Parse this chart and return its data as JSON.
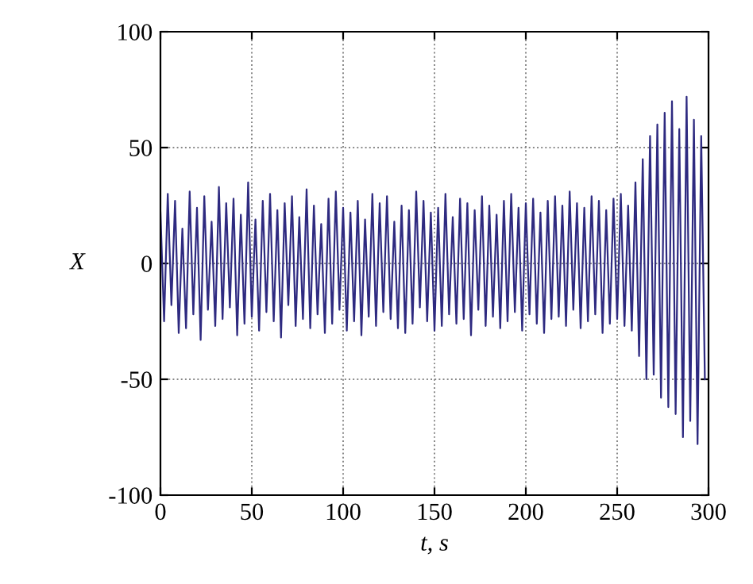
{
  "chart_data": {
    "type": "line",
    "xlabel": "t, s",
    "ylabel": "X",
    "x": [
      0,
      2,
      4,
      6,
      8,
      10,
      12,
      14,
      16,
      18,
      20,
      22,
      24,
      26,
      28,
      30,
      32,
      34,
      36,
      38,
      40,
      42,
      44,
      46,
      48,
      50,
      52,
      54,
      56,
      58,
      60,
      62,
      64,
      66,
      68,
      70,
      72,
      74,
      76,
      78,
      80,
      82,
      84,
      86,
      88,
      90,
      92,
      94,
      96,
      98,
      100,
      102,
      104,
      106,
      108,
      110,
      112,
      114,
      116,
      118,
      120,
      122,
      124,
      126,
      128,
      130,
      132,
      134,
      136,
      138,
      140,
      142,
      144,
      146,
      148,
      150,
      152,
      154,
      156,
      158,
      160,
      162,
      164,
      166,
      168,
      170,
      172,
      174,
      176,
      178,
      180,
      182,
      184,
      186,
      188,
      190,
      192,
      194,
      196,
      198,
      200,
      202,
      204,
      206,
      208,
      210,
      212,
      214,
      216,
      218,
      220,
      222,
      224,
      226,
      228,
      230,
      232,
      234,
      236,
      238,
      240,
      242,
      244,
      246,
      248,
      250,
      252,
      254,
      256,
      258,
      260,
      262,
      264,
      266,
      268,
      270,
      272,
      274,
      276,
      278,
      280,
      282,
      284,
      286,
      288,
      290,
      292,
      294,
      296,
      298
    ],
    "series": [
      {
        "color": "#2e2a80",
        "values": [
          22,
          -25,
          30,
          -18,
          27,
          -30,
          15,
          -28,
          31,
          -22,
          24,
          -33,
          29,
          -20,
          18,
          -27,
          33,
          -24,
          26,
          -19,
          28,
          -31,
          21,
          -26,
          35,
          -23,
          19,
          -29,
          27,
          -21,
          30,
          -25,
          23,
          -32,
          26,
          -18,
          29,
          -27,
          20,
          -24,
          32,
          -28,
          25,
          -22,
          17,
          -30,
          28,
          -26,
          31,
          -20,
          24,
          -29,
          22,
          -25,
          27,
          -31,
          19,
          -23,
          30,
          -27,
          26,
          -21,
          29,
          -24,
          18,
          -28,
          25,
          -30,
          23,
          -26,
          31,
          -19,
          27,
          -25,
          22,
          -29,
          24,
          -27,
          30,
          -22,
          20,
          -26,
          28,
          -24,
          26,
          -31,
          23,
          -20,
          29,
          -27,
          25,
          -23,
          21,
          -28,
          27,
          -25,
          30,
          -21,
          24,
          -29,
          26,
          -22,
          28,
          -26,
          22,
          -30,
          27,
          -24,
          29,
          -23,
          25,
          -27,
          31,
          -20,
          26,
          -28,
          24,
          -25,
          29,
          -22,
          27,
          -30,
          23,
          -26,
          28,
          -24,
          30,
          -27,
          25,
          -29,
          35,
          -40,
          45,
          -50,
          55,
          -48,
          60,
          -58,
          65,
          -62,
          70,
          -65,
          58,
          -75,
          72,
          -68,
          62,
          -78,
          55,
          -50
        ]
      }
    ],
    "xlim": [
      0,
      300
    ],
    "xticks": [
      0,
      50,
      100,
      150,
      200,
      250,
      300
    ],
    "ylim": [
      -100,
      100
    ],
    "yticks": [
      -100,
      -50,
      0,
      50,
      100
    ],
    "grid": true,
    "line_style": "solid"
  }
}
